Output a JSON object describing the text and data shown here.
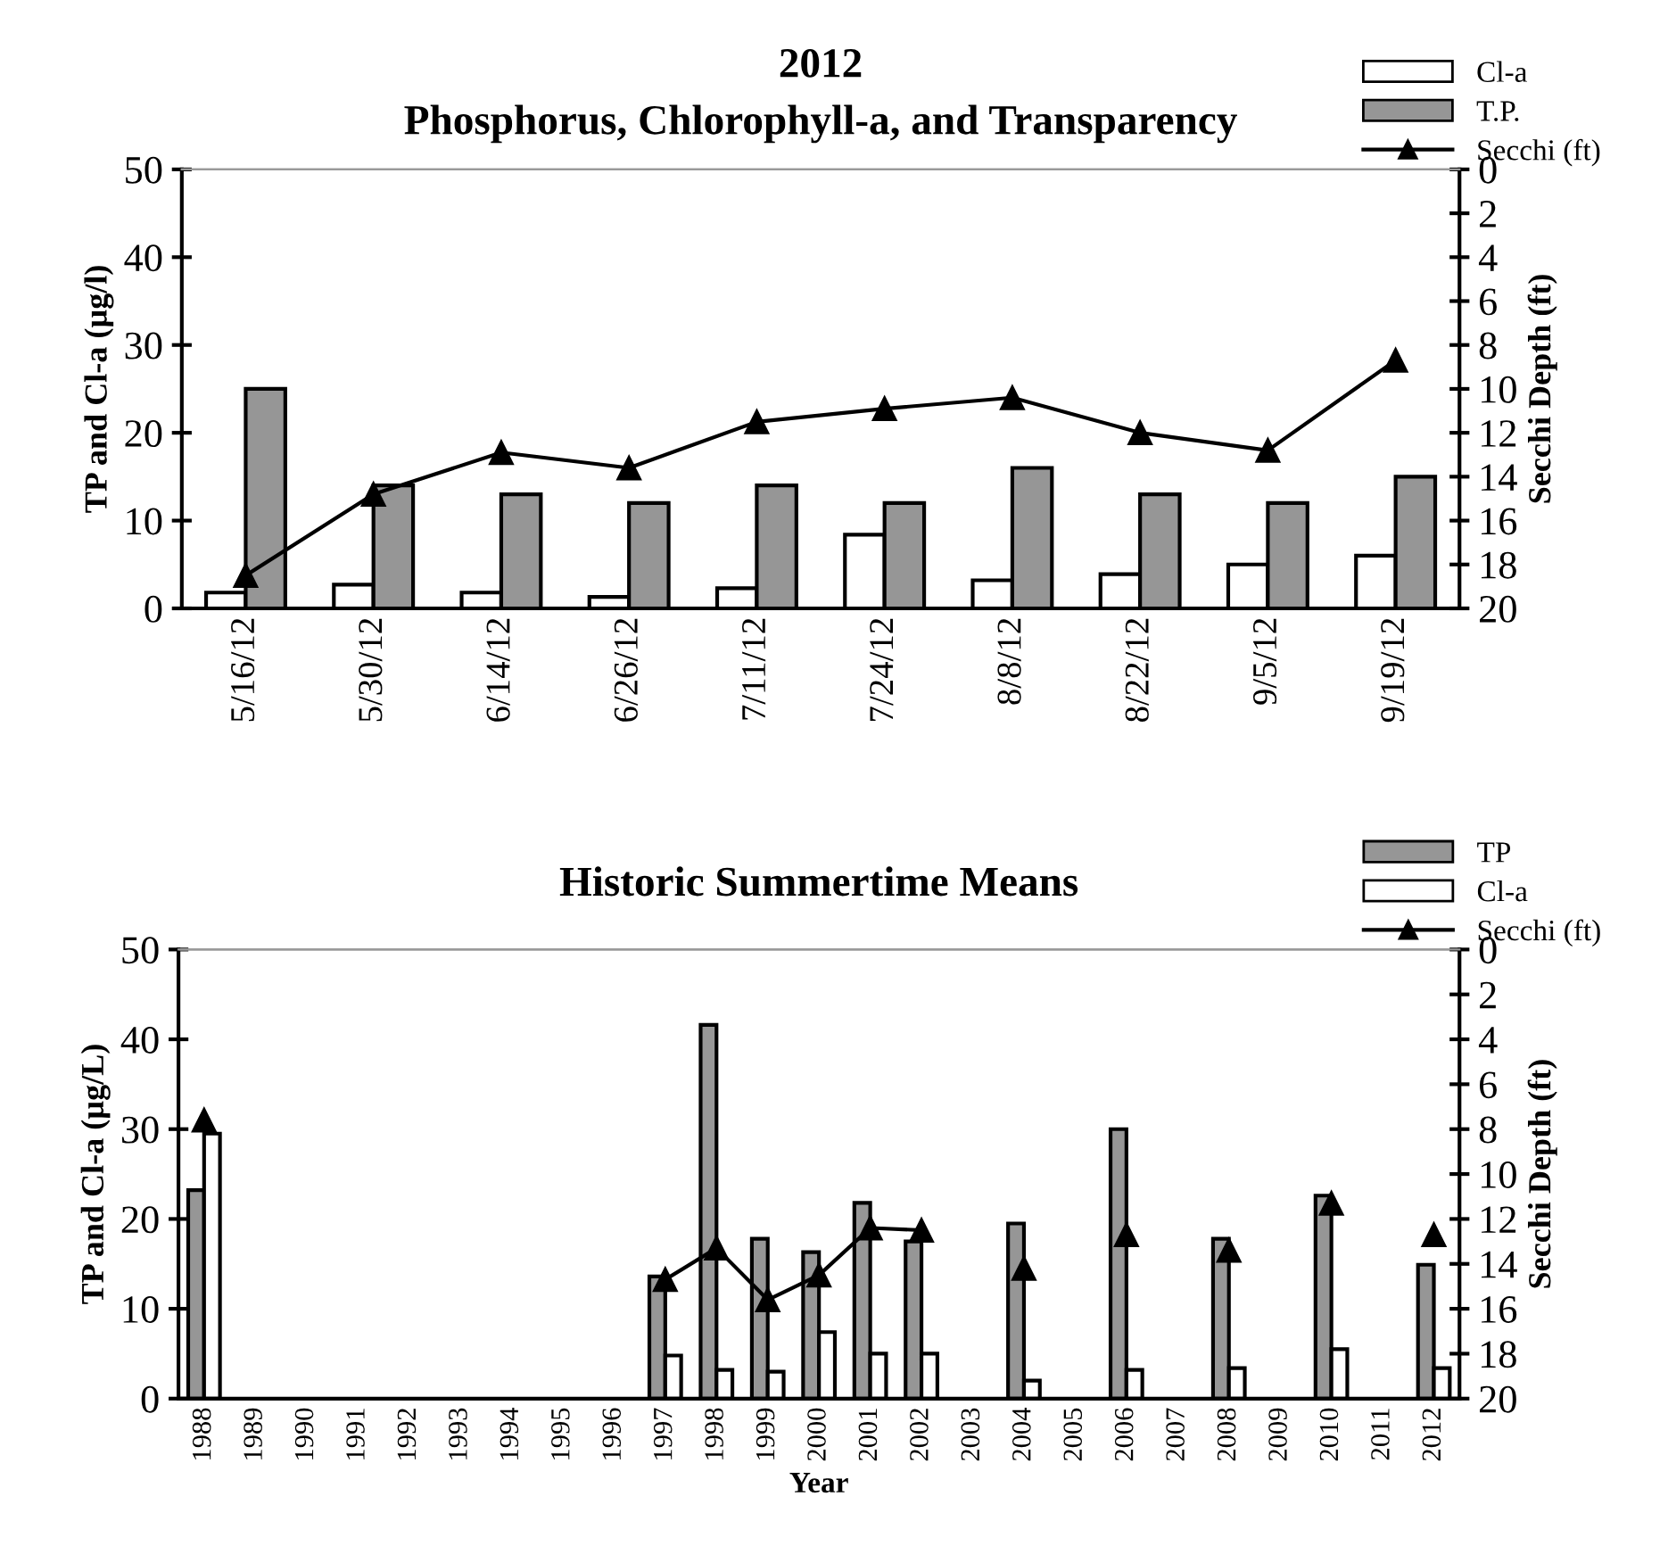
{
  "chart_data": [
    {
      "type": "bar",
      "title": "2012",
      "subtitle": "Phosphorus, Chlorophyll-a, and Transparency",
      "ylabel": "TP and Cl-a (µg/l)",
      "y2label": "Secchi Depth (ft)",
      "categories": [
        "5/16/12",
        "5/30/12",
        "6/14/12",
        "6/26/12",
        "7/11/12",
        "7/24/12",
        "8/8/12",
        "8/22/12",
        "9/5/12",
        "9/19/12"
      ],
      "series": [
        {
          "name": "Cl-a",
          "color": "#ffffff",
          "values": [
            1.8,
            2.7,
            1.8,
            1.3,
            2.3,
            8.4,
            3.2,
            3.9,
            5.0,
            6.0
          ]
        },
        {
          "name": "T.P.",
          "color": "#969696",
          "values": [
            25,
            14,
            13,
            12,
            14,
            12,
            16,
            13,
            12,
            15
          ]
        },
        {
          "name": "Secchi (ft)",
          "type": "line",
          "axis": "y2",
          "color": "#000000",
          "values": [
            18.5,
            14.8,
            12.9,
            13.6,
            11.5,
            10.9,
            10.4,
            12.0,
            12.8,
            8.7
          ]
        }
      ],
      "ylim": [
        0,
        50
      ],
      "yticks": [
        0,
        10,
        20,
        30,
        40,
        50
      ],
      "y2lim": [
        20,
        0
      ],
      "y2ticks": [
        0,
        2,
        4,
        6,
        8,
        10,
        12,
        14,
        16,
        18,
        20
      ],
      "marker": "triangle",
      "line_style": "solid",
      "legend": "top right",
      "grid": false
    },
    {
      "type": "bar",
      "title": "Historic Summertime Means",
      "xlabel": "Year",
      "ylabel": "TP and Cl-a (µg/L)",
      "y2label": "Secchi Depth (ft)",
      "categories": [
        "1988",
        "1989",
        "1990",
        "1991",
        "1992",
        "1993",
        "1994",
        "1995",
        "1996",
        "1997",
        "1998",
        "1999",
        "2000",
        "2001",
        "2002",
        "2003",
        "2004",
        "2005",
        "2006",
        "2007",
        "2008",
        "2009",
        "2010",
        "2011",
        "2012"
      ],
      "series": [
        {
          "name": "TP",
          "color": "#969696",
          "values": [
            23.2,
            null,
            null,
            null,
            null,
            null,
            null,
            null,
            null,
            13.6,
            41.6,
            17.8,
            16.3,
            21.8,
            17.5,
            null,
            19.5,
            null,
            30.0,
            null,
            17.8,
            null,
            22.6,
            null,
            14.9
          ]
        },
        {
          "name": "Cl-a",
          "color": "#ffffff",
          "values": [
            29.5,
            null,
            null,
            null,
            null,
            null,
            null,
            null,
            null,
            4.8,
            3.2,
            3.0,
            7.4,
            5.0,
            5.0,
            null,
            2.0,
            null,
            3.2,
            null,
            3.4,
            null,
            5.5,
            null,
            3.4
          ]
        },
        {
          "name": "Secchi (ft)",
          "type": "line",
          "axis": "y2",
          "color": "#000000",
          "values": [
            7.6,
            null,
            null,
            null,
            null,
            null,
            null,
            null,
            null,
            14.7,
            13.3,
            15.6,
            14.5,
            12.4,
            12.5,
            null,
            14.2,
            null,
            12.7,
            null,
            13.4,
            null,
            11.3,
            null,
            12.7
          ]
        }
      ],
      "ylim": [
        0,
        50
      ],
      "yticks": [
        0,
        10,
        20,
        30,
        40,
        50
      ],
      "y2lim": [
        20,
        0
      ],
      "y2ticks": [
        0,
        2,
        4,
        6,
        8,
        10,
        12,
        14,
        16,
        18,
        20
      ],
      "marker": "triangle",
      "line_style": "solid",
      "legend": "top right",
      "grid": false
    }
  ]
}
